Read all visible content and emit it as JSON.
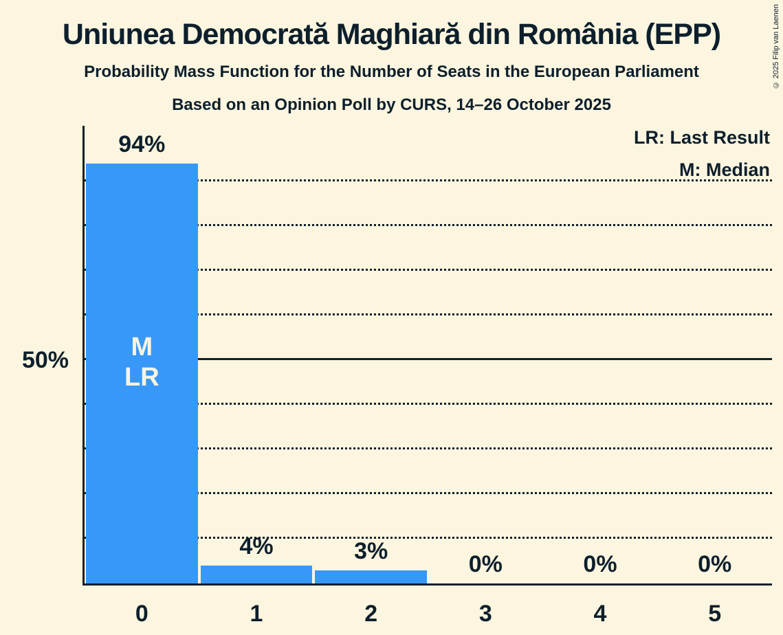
{
  "header": {
    "title": "Uniunea Democrată Maghiară din România (EPP)",
    "subtitle": "Probability Mass Function for the Number of Seats in the European Parliament",
    "poll_line": "Based on an Opinion Poll by CURS, 14–26 October 2025"
  },
  "copyright": "© 2025 Filip van Laenen",
  "legend": {
    "lr": "LR: Last Result",
    "m": "M: Median"
  },
  "colors": {
    "background": "#fcf5df",
    "bar": "#3898f8",
    "text": "#0d1f2c",
    "bar_label": "#fcf5df"
  },
  "chart_data": {
    "type": "bar",
    "categories": [
      "0",
      "1",
      "2",
      "3",
      "4",
      "5"
    ],
    "values": [
      94,
      4,
      3,
      0,
      0,
      0
    ],
    "value_labels": [
      "94%",
      "4%",
      "3%",
      "0%",
      "0%",
      "0%"
    ],
    "bar_annotations": [
      [
        "M",
        "LR"
      ],
      [],
      [],
      [],
      [],
      []
    ],
    "title": "Uniunea Democrată Maghiară din România (EPP)",
    "xlabel": "",
    "ylabel": "",
    "ylim": [
      0,
      100
    ],
    "ytick": {
      "label": "50%",
      "value": 50
    },
    "gridlines": {
      "dotted": [
        10,
        20,
        30,
        40,
        60,
        70,
        80,
        90
      ],
      "solid": [
        50
      ]
    },
    "legend_position": "top-right",
    "annotations_meaning": {
      "LR": "Last Result",
      "M": "Median"
    }
  }
}
